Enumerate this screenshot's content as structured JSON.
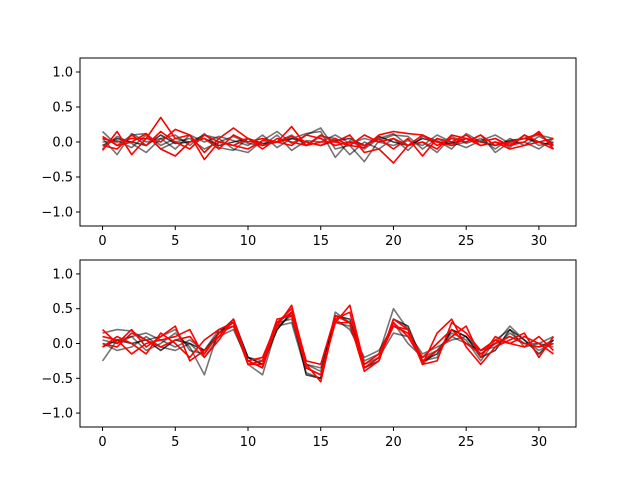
{
  "chart_data": [
    {
      "type": "line",
      "title": "",
      "xlabel": "",
      "ylabel": "",
      "xlim": [
        -1.55,
        32.55
      ],
      "ylim": [
        -1.2,
        1.2
      ],
      "x_ticks": [
        0,
        5,
        10,
        15,
        20,
        25,
        30
      ],
      "y_ticks": [
        1.0,
        0.5,
        0.0,
        -0.5,
        -1.0
      ],
      "x_tick_labels": [
        "0",
        "5",
        "10",
        "15",
        "20",
        "25",
        "30"
      ],
      "y_tick_labels": [
        "1.0",
        "0.5",
        "0.0",
        "−0.5",
        "−1.0"
      ],
      "grid": false,
      "legend": "none",
      "x": [
        0,
        1,
        2,
        3,
        4,
        5,
        6,
        7,
        8,
        9,
        10,
        11,
        12,
        13,
        14,
        15,
        16,
        17,
        18,
        19,
        20,
        21,
        22,
        23,
        24,
        25,
        26,
        27,
        28,
        29,
        30,
        31
      ],
      "series": [
        {
          "color": "#000000",
          "opacity": 0.55,
          "values": [
            0.15,
            -0.05,
            0.1,
            0.12,
            -0.05,
            0.05,
            0.0,
            0.1,
            0.05,
            -0.1,
            -0.15,
            0.02,
            0.15,
            -0.02,
            0.1,
            0.2,
            -0.1,
            -0.05,
            -0.28,
            0.02,
            0.1,
            0.08,
            -0.1,
            0.05,
            -0.05,
            0.0,
            0.1,
            -0.15,
            0.0,
            0.05,
            0.1,
            0.05
          ]
        },
        {
          "color": "#000000",
          "opacity": 0.55,
          "values": [
            0.05,
            -0.18,
            0.12,
            0.0,
            0.05,
            -0.1,
            0.1,
            0.0,
            0.08,
            0.02,
            -0.05,
            0.1,
            -0.08,
            0.05,
            0.12,
            0.15,
            -0.22,
            0.02,
            -0.1,
            0.05,
            0.12,
            -0.05,
            0.0,
            -0.15,
            0.08,
            -0.02,
            0.05,
            -0.1,
            0.05,
            -0.05,
            0.08,
            -0.02
          ]
        },
        {
          "color": "#000000",
          "opacity": 0.55,
          "values": [
            -0.1,
            0.08,
            -0.02,
            -0.15,
            0.05,
            0.1,
            -0.05,
            0.12,
            -0.08,
            -0.12,
            0.05,
            -0.05,
            0.0,
            0.1,
            -0.05,
            0.08,
            0.05,
            -0.18,
            0.0,
            -0.1,
            0.05,
            -0.12,
            0.08,
            0.02,
            -0.1,
            0.12,
            0.0,
            0.05,
            -0.08,
            0.1,
            -0.05,
            0.0
          ]
        },
        {
          "color": "#000000",
          "opacity": 0.55,
          "values": [
            0.0,
            0.02,
            -0.08,
            0.1,
            -0.1,
            0.0,
            0.05,
            -0.1,
            0.0,
            0.08,
            -0.02,
            -0.05,
            0.1,
            -0.12,
            0.02,
            0.0,
            0.1,
            -0.02,
            0.05,
            0.0,
            -0.05,
            0.02,
            -0.05,
            0.1,
            0.0,
            -0.08,
            0.02,
            0.1,
            -0.02,
            0.0,
            -0.1,
            0.05
          ]
        },
        {
          "color": "#000000",
          "opacity": 0.75,
          "values": [
            -0.05,
            0.05,
            0.0,
            -0.05,
            0.1,
            -0.02,
            0.0,
            0.05,
            -0.05,
            0.0,
            0.05,
            -0.02,
            0.0,
            0.05,
            0.0,
            -0.05,
            0.02,
            0.05,
            -0.05,
            0.08,
            0.0,
            -0.05,
            0.05,
            0.0,
            -0.02,
            0.05,
            0.0,
            -0.05,
            0.02,
            0.05,
            0.0,
            -0.05
          ]
        },
        {
          "color": "#ff0000",
          "opacity": 1.0,
          "values": [
            0.05,
            0.0,
            0.05,
            0.05,
            0.35,
            0.05,
            0.1,
            -0.15,
            0.05,
            0.2,
            0.05,
            -0.05,
            0.0,
            0.08,
            0.0,
            -0.05,
            0.05,
            -0.05,
            -0.08,
            0.1,
            0.15,
            0.12,
            0.1,
            -0.05,
            0.05,
            0.0,
            0.1,
            -0.05,
            0.0,
            0.05,
            0.12,
            -0.05
          ]
        },
        {
          "color": "#ff0000",
          "opacity": 1.0,
          "values": [
            -0.12,
            0.15,
            -0.18,
            0.05,
            0.0,
            0.18,
            0.1,
            -0.25,
            0.0,
            -0.05,
            -0.1,
            0.02,
            0.0,
            0.22,
            -0.05,
            0.0,
            0.0,
            0.1,
            -0.15,
            -0.1,
            -0.3,
            -0.05,
            0.0,
            -0.1,
            0.1,
            0.05,
            -0.05,
            0.0,
            -0.05,
            0.0,
            0.15,
            -0.1
          ]
        },
        {
          "color": "#ff0000",
          "opacity": 1.0,
          "values": [
            0.08,
            -0.05,
            0.0,
            0.12,
            -0.1,
            -0.2,
            0.0,
            0.05,
            -0.1,
            0.1,
            0.0,
            0.05,
            0.0,
            -0.05,
            0.1,
            0.05,
            -0.05,
            0.0,
            -0.05,
            0.05,
            -0.1,
            0.05,
            -0.2,
            0.05,
            0.0,
            0.1,
            -0.05,
            0.0,
            -0.1,
            -0.05,
            0.0,
            0.05
          ]
        },
        {
          "color": "#ff0000",
          "opacity": 1.0,
          "values": [
            -0.05,
            -0.1,
            0.1,
            -0.05,
            0.15,
            0.0,
            -0.1,
            0.1,
            0.0,
            -0.05,
            0.05,
            -0.1,
            0.05,
            0.0,
            -0.05,
            0.1,
            0.0,
            -0.05,
            0.1,
            0.0,
            0.05,
            -0.05,
            0.1,
            0.0,
            -0.05,
            0.05,
            0.0,
            0.05,
            -0.05,
            0.1,
            0.0,
            -0.1
          ]
        }
      ]
    },
    {
      "type": "line",
      "title": "",
      "xlabel": "",
      "ylabel": "",
      "xlim": [
        -1.55,
        32.55
      ],
      "ylim": [
        -1.2,
        1.2
      ],
      "x_ticks": [
        0,
        5,
        10,
        15,
        20,
        25,
        30
      ],
      "y_ticks": [
        1.0,
        0.5,
        0.0,
        -0.5,
        -1.0
      ],
      "x_tick_labels": [
        "0",
        "5",
        "10",
        "15",
        "20",
        "25",
        "30"
      ],
      "y_tick_labels": [
        "1.0",
        "0.5",
        "0.0",
        "−0.5",
        "−1.0"
      ],
      "grid": false,
      "legend": "none",
      "x": [
        0,
        1,
        2,
        3,
        4,
        5,
        6,
        7,
        8,
        9,
        10,
        11,
        12,
        13,
        14,
        15,
        16,
        17,
        18,
        19,
        20,
        21,
        22,
        23,
        24,
        25,
        26,
        27,
        28,
        29,
        30,
        31
      ],
      "series": [
        {
          "color": "#000000",
          "opacity": 0.55,
          "values": [
            -0.25,
            0.05,
            0.1,
            -0.1,
            0.0,
            0.15,
            -0.05,
            -0.45,
            0.2,
            0.25,
            -0.3,
            -0.45,
            0.25,
            0.3,
            -0.42,
            -0.5,
            0.45,
            0.3,
            -0.25,
            -0.15,
            0.5,
            0.2,
            -0.3,
            -0.1,
            0.15,
            0.05,
            -0.25,
            0.05,
            0.2,
            -0.05,
            0.0,
            0.1
          ]
        },
        {
          "color": "#000000",
          "opacity": 0.55,
          "values": [
            0.15,
            0.2,
            0.18,
            0.05,
            0.1,
            0.2,
            -0.1,
            -0.15,
            0.15,
            0.3,
            -0.2,
            -0.3,
            0.2,
            0.45,
            -0.3,
            -0.35,
            0.3,
            0.25,
            -0.3,
            -0.2,
            0.15,
            0.1,
            -0.25,
            -0.2,
            0.2,
            0.1,
            -0.15,
            0.0,
            0.25,
            0.05,
            -0.1,
            0.0
          ]
        },
        {
          "color": "#000000",
          "opacity": 0.55,
          "values": [
            0.0,
            -0.1,
            -0.05,
            0.1,
            -0.05,
            -0.1,
            0.0,
            -0.2,
            0.1,
            0.2,
            -0.25,
            -0.35,
            0.3,
            0.35,
            -0.35,
            -0.45,
            0.4,
            0.3,
            -0.35,
            -0.2,
            0.3,
            0.0,
            -0.2,
            -0.1,
            0.1,
            0.0,
            -0.1,
            -0.05,
            0.15,
            0.0,
            -0.05,
            0.05
          ]
        },
        {
          "color": "#000000",
          "opacity": 0.55,
          "values": [
            0.05,
            0.0,
            0.1,
            0.15,
            0.05,
            -0.05,
            0.05,
            -0.1,
            0.2,
            0.3,
            -0.2,
            -0.25,
            0.25,
            0.4,
            -0.3,
            -0.4,
            0.35,
            0.2,
            -0.2,
            -0.1,
            0.25,
            0.15,
            -0.15,
            -0.05,
            0.05,
            0.1,
            -0.1,
            0.0,
            0.1,
            0.0,
            0.0,
            -0.05
          ]
        },
        {
          "color": "#000000",
          "opacity": 0.75,
          "values": [
            -0.05,
            0.05,
            0.0,
            0.05,
            -0.1,
            0.05,
            0.0,
            -0.1,
            0.15,
            0.35,
            -0.2,
            -0.3,
            0.2,
            0.45,
            -0.45,
            -0.5,
            0.4,
            0.35,
            -0.35,
            -0.25,
            0.35,
            0.25,
            -0.25,
            -0.15,
            0.2,
            0.1,
            -0.2,
            -0.1,
            0.2,
            0.05,
            -0.15,
            0.05
          ]
        },
        {
          "color": "#ff0000",
          "opacity": 1.0,
          "values": [
            0.2,
            0.0,
            0.2,
            -0.05,
            0.1,
            0.25,
            -0.25,
            -0.1,
            0.1,
            0.35,
            -0.25,
            -0.2,
            0.3,
            0.5,
            -0.25,
            -0.3,
            0.4,
            0.3,
            -0.4,
            -0.25,
            0.35,
            0.2,
            -0.3,
            0.15,
            0.35,
            -0.05,
            -0.3,
            -0.05,
            0.05,
            0.15,
            -0.2,
            0.1
          ]
        },
        {
          "color": "#ff0000",
          "opacity": 1.0,
          "values": [
            0.1,
            0.05,
            -0.15,
            0.0,
            0.05,
            0.1,
            0.2,
            -0.2,
            0.05,
            0.35,
            -0.3,
            -0.3,
            0.25,
            0.55,
            -0.3,
            -0.55,
            0.35,
            0.45,
            -0.35,
            -0.2,
            0.25,
            0.2,
            -0.3,
            -0.25,
            0.3,
            0.15,
            -0.1,
            0.05,
            0.0,
            0.1,
            0.0,
            -0.15
          ]
        },
        {
          "color": "#ff0000",
          "opacity": 1.0,
          "values": [
            -0.05,
            0.1,
            0.0,
            -0.15,
            0.15,
            0.0,
            -0.2,
            0.05,
            0.2,
            0.3,
            -0.3,
            -0.25,
            0.35,
            0.4,
            -0.35,
            -0.45,
            0.3,
            0.55,
            -0.3,
            -0.15,
            0.3,
            0.1,
            -0.25,
            -0.1,
            0.1,
            0.25,
            -0.2,
            0.1,
            0.0,
            -0.05,
            0.1,
            -0.1
          ]
        },
        {
          "color": "#ff0000",
          "opacity": 1.0,
          "values": [
            0.0,
            -0.05,
            0.15,
            0.05,
            -0.05,
            0.05,
            0.1,
            -0.15,
            0.15,
            0.25,
            -0.25,
            -0.35,
            0.3,
            0.45,
            -0.35,
            -0.45,
            0.3,
            0.3,
            -0.35,
            -0.2,
            0.25,
            0.15,
            -0.2,
            0.0,
            0.2,
            0.0,
            -0.15,
            0.0,
            0.1,
            0.0,
            -0.05,
            0.0
          ]
        }
      ]
    }
  ]
}
